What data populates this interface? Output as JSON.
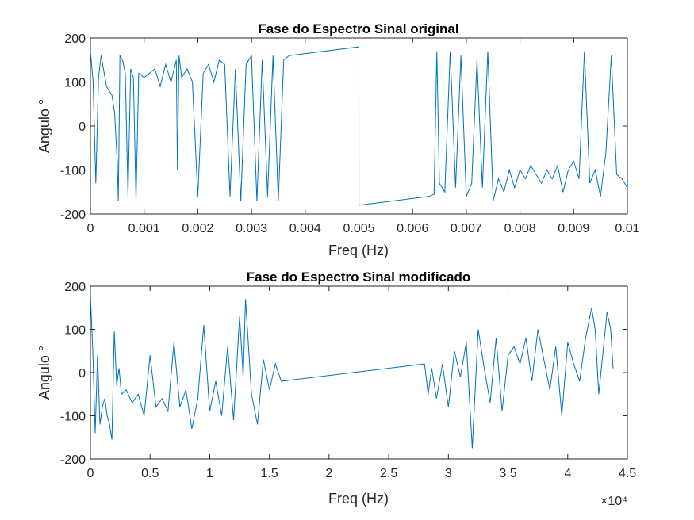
{
  "series_color": "#0072bd",
  "chart_data": [
    {
      "type": "line",
      "title": "Fase do Espectro Sinal original",
      "xlabel": "Freq (Hz)",
      "ylabel": "Angulo °",
      "xlim": [
        0,
        0.01
      ],
      "ylim": [
        -200,
        200
      ],
      "x_ticks": [
        0,
        0.001,
        0.002,
        0.003,
        0.004,
        0.005,
        0.006,
        0.007,
        0.008,
        0.009,
        0.01
      ],
      "x_tick_labels": [
        "0",
        "0.001",
        "0.002",
        "0.003",
        "0.004",
        "0.005",
        "0.006",
        "0.007",
        "0.008",
        "0.009",
        "0.01"
      ],
      "y_ticks": [
        -200,
        -100,
        0,
        100,
        200
      ],
      "y_tick_labels": [
        "-200",
        "-100",
        "0",
        "100",
        "200"
      ],
      "exponent_label": "",
      "grid": false,
      "series": [
        {
          "x": [
            0,
            5e-05,
            0.0001,
            0.00015,
            0.0002,
            0.0003,
            0.0004,
            0.00045,
            0.0005,
            0.00052,
            0.00055,
            0.0006,
            0.00065,
            0.0007,
            0.00075,
            0.0008,
            0.00085,
            0.0009,
            0.001,
            0.0011,
            0.0012,
            0.0013,
            0.0014,
            0.0015,
            0.0016,
            0.00162,
            0.00165,
            0.0017,
            0.0018,
            0.0019,
            0.002,
            0.0021,
            0.0022,
            0.0023,
            0.0024,
            0.0025,
            0.0026,
            0.0027,
            0.0028,
            0.0029,
            0.003,
            0.0031,
            0.0032,
            0.0033,
            0.0034,
            0.0035,
            0.0036,
            0.0037,
            0.005,
            0.005001,
            0.0063,
            0.0064,
            0.00645,
            0.0065,
            0.0066,
            0.0067,
            0.0068,
            0.0069,
            0.007,
            0.0071,
            0.0072,
            0.0073,
            0.0074,
            0.0075,
            0.0076,
            0.0077,
            0.0078,
            0.0079,
            0.008,
            0.0081,
            0.0082,
            0.0083,
            0.0084,
            0.0085,
            0.0086,
            0.0087,
            0.0088,
            0.0089,
            0.009,
            0.0091,
            0.0092,
            0.0093,
            0.0094,
            0.0095,
            0.0096,
            0.0097,
            0.0098,
            0.0099,
            0.01
          ],
          "y": [
            170,
            100,
            -130,
            110,
            160,
            90,
            70,
            30,
            -80,
            -170,
            160,
            150,
            120,
            -160,
            130,
            110,
            -170,
            120,
            110,
            120,
            130,
            90,
            140,
            100,
            150,
            -100,
            160,
            110,
            130,
            100,
            -160,
            120,
            140,
            100,
            150,
            140,
            -160,
            130,
            -170,
            140,
            160,
            -170,
            150,
            -160,
            160,
            -170,
            150,
            160,
            180,
            -180,
            -160,
            -155,
            170,
            -130,
            -150,
            170,
            -140,
            160,
            -160,
            -130,
            150,
            -140,
            170,
            -170,
            -120,
            -150,
            -100,
            -140,
            -100,
            -120,
            -90,
            -110,
            -130,
            -100,
            -120,
            -90,
            -150,
            -100,
            -80,
            -120,
            170,
            -130,
            -100,
            -160,
            -60,
            160,
            -110,
            -120,
            -140
          ]
        }
      ]
    },
    {
      "type": "line",
      "title": "Fase do Espectro Sinal modificado",
      "xlabel": "Freq (Hz)",
      "ylabel": "Angulo °",
      "xlim": [
        0,
        45000
      ],
      "ylim": [
        -200,
        200
      ],
      "x_ticks": [
        0,
        5000,
        10000,
        15000,
        20000,
        25000,
        30000,
        35000,
        40000,
        45000
      ],
      "x_tick_labels": [
        "0",
        "0.5",
        "1",
        "1.5",
        "2",
        "2.5",
        "3",
        "3.5",
        "4",
        "4.5"
      ],
      "y_ticks": [
        -200,
        -100,
        0,
        100,
        200
      ],
      "y_tick_labels": [
        "-200",
        "-100",
        "0",
        "100",
        "200"
      ],
      "exponent_label": "×10⁴",
      "grid": false,
      "series": [
        {
          "x": [
            0,
            200,
            400,
            600,
            800,
            1000,
            1200,
            1400,
            1600,
            1800,
            2000,
            2200,
            2400,
            2600,
            3000,
            3500,
            4000,
            4500,
            5000,
            5500,
            6000,
            6500,
            7000,
            7500,
            8000,
            8500,
            9000,
            9500,
            10000,
            10500,
            11000,
            11500,
            12000,
            12500,
            12800,
            13000,
            13500,
            14000,
            14500,
            15000,
            15500,
            16000,
            28000,
            28300,
            28600,
            29000,
            29500,
            30000,
            30500,
            31000,
            31500,
            32000,
            32500,
            33000,
            33500,
            34000,
            34500,
            35000,
            35500,
            36000,
            36500,
            37000,
            37500,
            38000,
            38500,
            39000,
            39500,
            40000,
            40500,
            41000,
            41500,
            42000,
            42300,
            42600,
            43000,
            43300,
            43600,
            43800
          ],
          "y": [
            180,
            50,
            -140,
            40,
            -120,
            -80,
            -60,
            -100,
            -120,
            -155,
            95,
            -30,
            10,
            -50,
            -40,
            -70,
            -50,
            -100,
            40,
            -80,
            -60,
            -90,
            70,
            -80,
            -40,
            -130,
            -60,
            110,
            -90,
            -20,
            -100,
            60,
            -110,
            130,
            -10,
            170,
            -50,
            -120,
            30,
            -40,
            20,
            -20,
            20,
            -50,
            10,
            -60,
            20,
            -80,
            50,
            -10,
            70,
            -175,
            100,
            10,
            -70,
            80,
            -90,
            40,
            60,
            20,
            80,
            -20,
            100,
            30,
            -40,
            60,
            -100,
            70,
            20,
            -20,
            80,
            150,
            100,
            -50,
            60,
            140,
            100,
            10
          ]
        }
      ]
    }
  ]
}
